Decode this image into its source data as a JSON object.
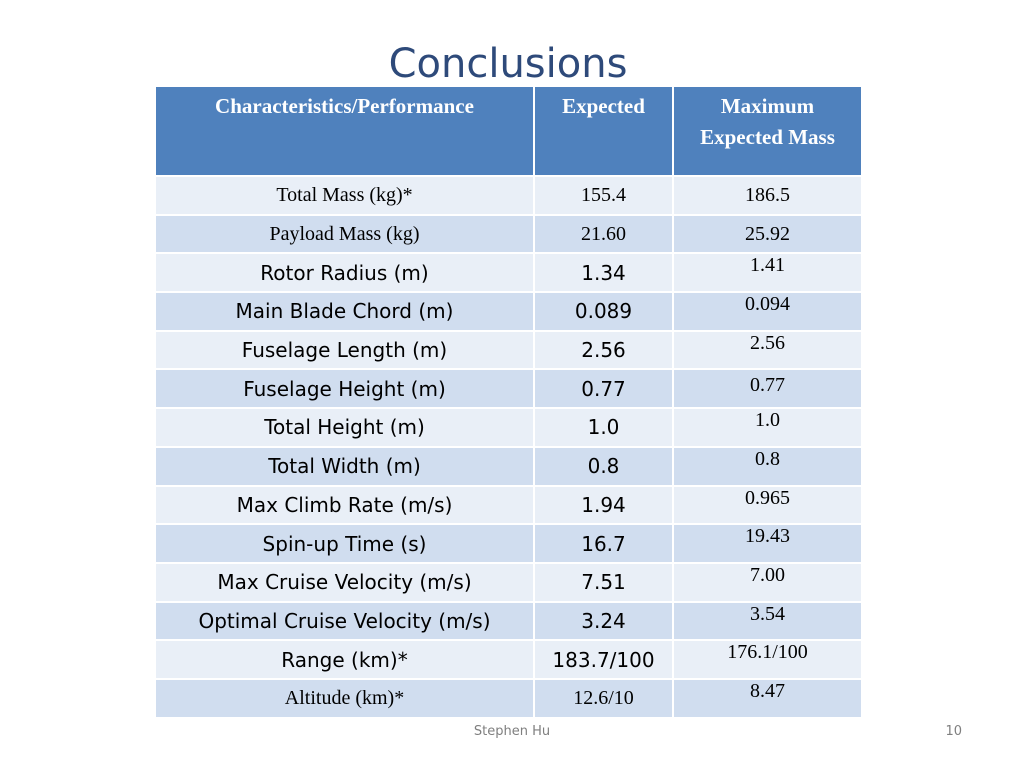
{
  "slide": {
    "title": "Conclusions",
    "footer": "Stephen Hu",
    "page_number": "10"
  },
  "table": {
    "headers": [
      "Characteristics/Performance",
      "Expected",
      "Maximum Expected Mass"
    ],
    "rows": [
      {
        "label": "Total Mass (kg)*",
        "expected": "155.4",
        "max": "186.5"
      },
      {
        "label": "Payload Mass (kg)",
        "expected": "21.60",
        "max": "25.92"
      },
      {
        "label": "Rotor Radius (m)",
        "expected": "1.34",
        "max": "1.41"
      },
      {
        "label": "Main Blade Chord (m)",
        "expected": "0.089",
        "max": "0.094"
      },
      {
        "label": "Fuselage Length (m)",
        "expected": "2.56",
        "max": "2.56"
      },
      {
        "label": "Fuselage Height (m)",
        "expected": "0.77",
        "max": "0.77"
      },
      {
        "label": "Total Height (m)",
        "expected": "1.0",
        "max": "1.0"
      },
      {
        "label": "Total Width (m)",
        "expected": "0.8",
        "max": "0.8"
      },
      {
        "label": "Max Climb Rate (m/s)",
        "expected": "1.94",
        "max": "0.965"
      },
      {
        "label": "Spin-up Time (s)",
        "expected": "16.7",
        "max": "19.43"
      },
      {
        "label": "Max Cruise Velocity (m/s)",
        "expected": "7.51",
        "max": "7.00"
      },
      {
        "label": "Optimal Cruise Velocity (m/s)",
        "expected": "3.24",
        "max": "3.54"
      },
      {
        "label": "Range (km)*",
        "expected": "183.7/100",
        "max": "176.1/100"
      },
      {
        "label": "Altitude (km)*",
        "expected": "12.6/10",
        "max": "8.47"
      }
    ]
  },
  "colors": {
    "header_bg": "#4f81bd",
    "row_light": "#e9eff7",
    "row_dark": "#d0ddef",
    "title": "#2e4a7a"
  }
}
